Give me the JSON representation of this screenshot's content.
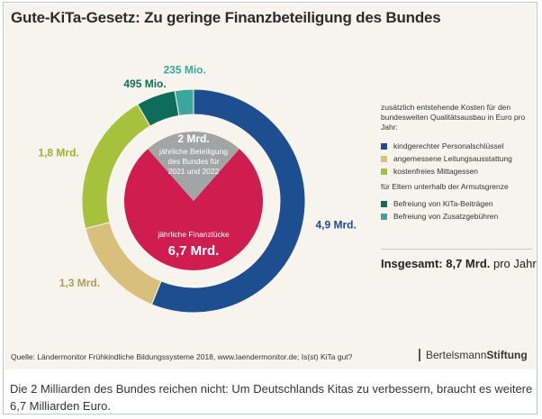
{
  "title": "Gute-KiTa-Gesetz: Zu geringe Finanzbeteiligung des Bundes",
  "legend": {
    "head": "zusätzlich entstehende Kosten für den bundesweiten Qualitätsausbau in Euro pro Jahr:",
    "items": [
      {
        "label": "kindgerechter Personalschlüssel",
        "color": "#1d4e8f"
      },
      {
        "label": "angemessene Leitungsausstattung",
        "color": "#d9bf7c"
      },
      {
        "label": "kostenfreies Mittagessen",
        "color": "#a6c23c"
      }
    ],
    "sub_head": "für Eltern unterhalb der Armutsgrenze",
    "sub_items": [
      {
        "label": "Befreiung von KiTa-Beiträgen",
        "color": "#0f6b5a"
      },
      {
        "label": "Befreiung von Zusatzgebühren",
        "color": "#3aa79d"
      }
    ]
  },
  "total": {
    "prefix": "Insgesamt: ",
    "value": "8,7 Mrd.",
    "suffix": " pro Jahr"
  },
  "source": "Quelle: Ländermonitor Frühkindliche Bildungssysteme 2018, www.laendermonitor.de; Is(st) KiTa gut?",
  "brand": {
    "regular": "Bertelsmann",
    "bold": "Stiftung"
  },
  "caption": "Die 2 Milliarden des Bundes reichen nicht: Um Deutschlands Kitas zu verbessern, braucht es weitere 6,7 Milliarden Euro.",
  "chart_data": [
    {
      "type": "pie",
      "subtype": "donut",
      "categories": [
        "kindgerechter Personalschlüssel",
        "angemessene Leitungsausstattung",
        "kostenfreies Mittagessen",
        "Befreiung von KiTa-Beiträgen",
        "Befreiung von Zusatzgebühren"
      ],
      "values": [
        4.9,
        1.3,
        1.8,
        0.495,
        0.235
      ],
      "unit": "Mrd. Euro",
      "labels": [
        "4,9 Mrd.",
        "1,3 Mrd.",
        "1,8 Mrd.",
        "495 Mio.",
        "235 Mio."
      ],
      "colors": [
        "#1d4e8f",
        "#d9bf7c",
        "#a6c23c",
        "#0f6b5a",
        "#3aa79d"
      ],
      "label_colors": [
        "#1d4e8f",
        "#b89a52",
        "#98b22e",
        "#0f6b5a",
        "#3aa79d"
      ]
    },
    {
      "type": "pie",
      "categories": [
        "jährliche Beteiligung des Bundes für 2021 und 2022",
        "jährliche Finanzlücke"
      ],
      "values": [
        2.0,
        6.7
      ],
      "unit": "Mrd. Euro",
      "labels": [
        {
          "value": "2 Mrd.",
          "text": [
            "jährliche Beteiligung",
            "des Bundes für",
            "2021 und 2022"
          ]
        },
        {
          "value": "6,7 Mrd.",
          "text": [
            "jährliche Finanzlücke"
          ]
        }
      ],
      "colors": [
        "#a3a4a6",
        "#cf1d4f"
      ]
    }
  ]
}
